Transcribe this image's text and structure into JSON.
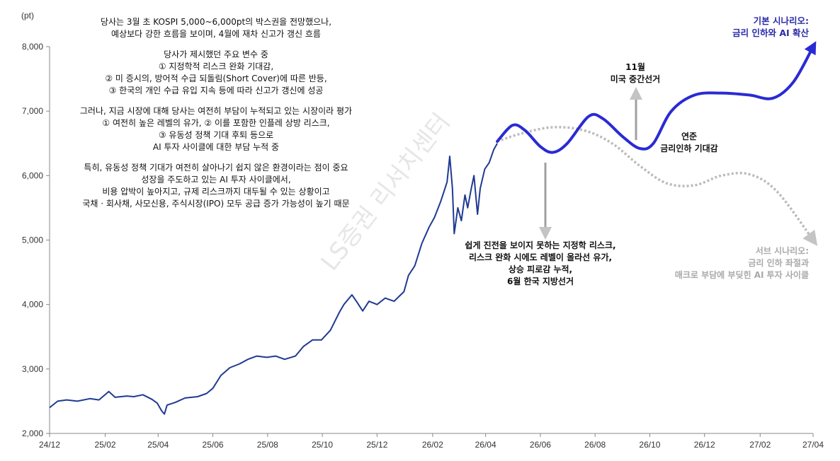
{
  "chart_data": {
    "type": "line",
    "ylabel": "(pt)",
    "ylim": [
      2000,
      8000
    ],
    "yticks": [
      2000,
      3000,
      4000,
      5000,
      6000,
      7000,
      8000
    ],
    "ytick_labels": [
      "2,000",
      "3,000",
      "4,000",
      "5,000",
      "6,000",
      "7,000",
      "8,000"
    ],
    "xlim": [
      "2024-12-01",
      "2027-04-01"
    ],
    "xticks": [
      "2024-12-01",
      "2025-02-01",
      "2025-04-01",
      "2025-06-01",
      "2025-08-01",
      "2025-10-01",
      "2025-12-01",
      "2026-02-01",
      "2026-04-01",
      "2026-06-01",
      "2026-08-01",
      "2026-10-01",
      "2026-12-01",
      "2027-02-01",
      "2027-04-01"
    ],
    "xtick_labels": [
      "24/12",
      "25/02",
      "25/04",
      "25/06",
      "25/08",
      "25/10",
      "25/12",
      "26/02",
      "26/04",
      "26/06",
      "26/08",
      "26/10",
      "26/12",
      "27/02",
      "27/04"
    ],
    "grid": false,
    "series": [
      {
        "name": "",
        "style": "solid-thin",
        "color": "#1f3a93",
        "points": [
          [
            "2024-12-01",
            2400
          ],
          [
            "2024-12-10",
            2500
          ],
          [
            "2024-12-20",
            2520
          ],
          [
            "2025-01-01",
            2500
          ],
          [
            "2025-01-15",
            2540
          ],
          [
            "2025-01-25",
            2520
          ],
          [
            "2025-02-05",
            2650
          ],
          [
            "2025-02-12",
            2560
          ],
          [
            "2025-02-25",
            2580
          ],
          [
            "2025-03-05",
            2570
          ],
          [
            "2025-03-15",
            2600
          ],
          [
            "2025-03-25",
            2530
          ],
          [
            "2025-03-31",
            2470
          ],
          [
            "2025-04-05",
            2350
          ],
          [
            "2025-04-08",
            2300
          ],
          [
            "2025-04-11",
            2440
          ],
          [
            "2025-04-20",
            2480
          ],
          [
            "2025-05-01",
            2550
          ],
          [
            "2025-05-15",
            2570
          ],
          [
            "2025-05-25",
            2620
          ],
          [
            "2025-06-01",
            2700
          ],
          [
            "2025-06-10",
            2900
          ],
          [
            "2025-06-20",
            3020
          ],
          [
            "2025-07-01",
            3080
          ],
          [
            "2025-07-10",
            3150
          ],
          [
            "2025-07-20",
            3200
          ],
          [
            "2025-07-31",
            3180
          ],
          [
            "2025-08-10",
            3200
          ],
          [
            "2025-08-20",
            3150
          ],
          [
            "2025-09-01",
            3200
          ],
          [
            "2025-09-10",
            3350
          ],
          [
            "2025-09-20",
            3450
          ],
          [
            "2025-09-30",
            3450
          ],
          [
            "2025-10-10",
            3600
          ],
          [
            "2025-10-20",
            3880
          ],
          [
            "2025-10-25",
            4000
          ],
          [
            "2025-11-03",
            4150
          ],
          [
            "2025-11-08",
            4050
          ],
          [
            "2025-11-15",
            3900
          ],
          [
            "2025-11-22",
            4050
          ],
          [
            "2025-12-01",
            4000
          ],
          [
            "2025-12-10",
            4100
          ],
          [
            "2025-12-20",
            4050
          ],
          [
            "2025-12-31",
            4200
          ],
          [
            "2026-01-05",
            4450
          ],
          [
            "2026-01-12",
            4600
          ],
          [
            "2026-01-20",
            4950
          ],
          [
            "2026-01-28",
            5200
          ],
          [
            "2026-02-03",
            5350
          ],
          [
            "2026-02-10",
            5600
          ],
          [
            "2026-02-17",
            5900
          ],
          [
            "2026-02-20",
            6300
          ],
          [
            "2026-02-23",
            5800
          ],
          [
            "2026-02-25",
            5100
          ],
          [
            "2026-03-01",
            5500
          ],
          [
            "2026-03-05",
            5300
          ],
          [
            "2026-03-09",
            5700
          ],
          [
            "2026-03-12",
            5500
          ],
          [
            "2026-03-16",
            5800
          ],
          [
            "2026-03-19",
            6000
          ],
          [
            "2026-03-23",
            5400
          ],
          [
            "2026-03-26",
            5800
          ],
          [
            "2026-03-31",
            6100
          ],
          [
            "2026-04-05",
            6200
          ],
          [
            "2026-04-10",
            6400
          ],
          [
            "2026-04-14",
            6500
          ]
        ]
      },
      {
        "name": "",
        "style": "solid-thick",
        "color": "#2a2ad4",
        "points": [
          [
            "2026-04-14",
            6530
          ],
          [
            "2026-05-01",
            6780
          ],
          [
            "2026-05-15",
            6700
          ],
          [
            "2026-06-01",
            6450
          ],
          [
            "2026-06-15",
            6360
          ],
          [
            "2026-07-01",
            6500
          ],
          [
            "2026-07-25",
            6920
          ],
          [
            "2026-08-10",
            6880
          ],
          [
            "2026-09-01",
            6600
          ],
          [
            "2026-09-20",
            6420
          ],
          [
            "2026-10-05",
            6500
          ],
          [
            "2026-10-25",
            7000
          ],
          [
            "2026-11-20",
            7250
          ],
          [
            "2026-12-20",
            7280
          ],
          [
            "2027-01-20",
            7250
          ],
          [
            "2027-02-15",
            7200
          ],
          [
            "2027-03-10",
            7450
          ],
          [
            "2027-04-01",
            8000
          ]
        ]
      },
      {
        "name": "",
        "style": "dotted",
        "color": "#bbbbbb",
        "points": [
          [
            "2026-04-14",
            6530
          ],
          [
            "2026-05-10",
            6650
          ],
          [
            "2026-06-15",
            6750
          ],
          [
            "2026-07-20",
            6700
          ],
          [
            "2026-08-20",
            6500
          ],
          [
            "2026-09-20",
            6150
          ],
          [
            "2026-10-20",
            5880
          ],
          [
            "2026-11-20",
            5850
          ],
          [
            "2026-12-20",
            6000
          ],
          [
            "2027-01-20",
            6020
          ],
          [
            "2027-02-20",
            5750
          ],
          [
            "2027-04-01",
            5000
          ]
        ]
      }
    ],
    "annotations": {
      "top_text": [
        "당사는 3월 초 KOSPI 5,000~6,000pt의 박스권을 전망했으나,",
        "예상보다 강한 흐름을 보이며, 4월에 재차 신고가 갱신 흐름",
        "",
        "당사가 제시했던 주요 변수 중",
        "① 지정학적 리스크 완화 기대감,",
        "② 미 증시의, 방어적 수급 되돌림(Short Cover)에 따른 반등,",
        "③ 한국의 개인 수급 유입 지속 등에 따라 신고가 갱신에 성공",
        "",
        "그러나, 지금 시장에 대해 당사는 여전히 부담이 누적되고 있는 시장이라 평가",
        "① 여전히 높은 레벨의 유가, ② 이를 포함한 인플레 상방 리스크,",
        "③ 유동성 정책 기대 후퇴 등으로",
        "AI 투자 사이클에 대한 부담 누적 중",
        "",
        "특히, 유동성 정책 기대가 여전히 살아나기 쉽지 않은 환경이라는 점이 중요",
        "성장을 주도하고 있는 AI 투자 사이클에서,",
        "비용 압박이 높아지고, 규제 리스크까지 대두될 수 있는 상황이고",
        "국채 · 회사채, 사모신용, 주식시장(IPO) 모두 공급 증가 가능성이 높기 때문"
      ],
      "risk_text": [
        "쉽게 진전을 보이지 못하는 지정학 리스크,",
        "리스크 완화 시에도 레벨이 올라선 유가,",
        "상승 피로감 누적,",
        "6월 한국 지방선거"
      ],
      "election_text": [
        "11월",
        "미국 중간선거"
      ],
      "fed_text": [
        "연준",
        "금리인하 기대감"
      ],
      "base_scenario": [
        "기본 시나리오:",
        "금리 인하와 AI 확산"
      ],
      "sub_scenario": [
        "서브 시나리오:",
        "금리 인하 좌절과",
        "매크로 부담에 부딪힌 AI 투자 사이클"
      ],
      "watermark": "LS증권 리서치센터"
    }
  }
}
